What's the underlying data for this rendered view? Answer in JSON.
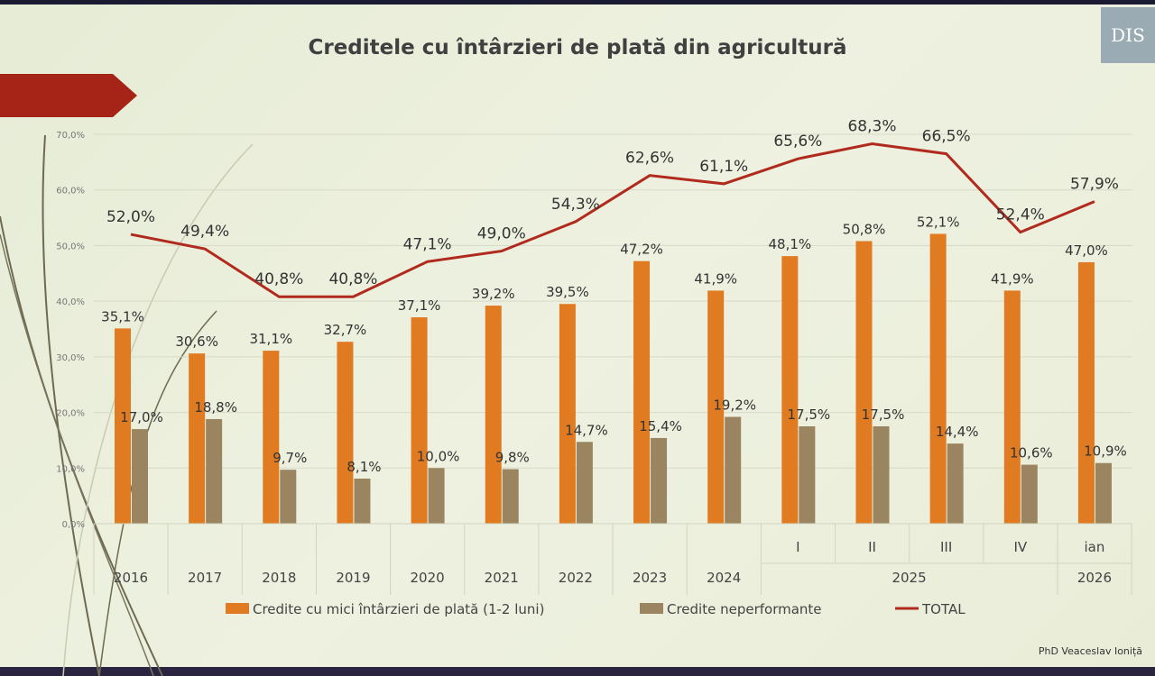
{
  "footer": "PhD Veaceslav Ioniță",
  "logo": "DIS",
  "chart_data": {
    "type": "bar+line",
    "title": "Creditele cu întârzieri de plată din agricultură",
    "categories": [
      "2016",
      "2017",
      "2018",
      "2019",
      "2020",
      "2021",
      "2022",
      "2023",
      "2024",
      "I",
      "II",
      "III",
      "IV",
      "ian"
    ],
    "group_labels": [
      {
        "label": "2025",
        "span": [
          9,
          12
        ]
      },
      {
        "label": "2026",
        "span": [
          13,
          13
        ]
      }
    ],
    "yticks": [
      "0,0%",
      "10,0%",
      "20,0%",
      "30,0%",
      "40,0%",
      "50,0%",
      "60,0%",
      "70,0%"
    ],
    "ylim": [
      0,
      70
    ],
    "series": [
      {
        "name": "Credite cu mici întârzieri de plată (1-2 luni)",
        "type": "bar",
        "color": "#e07b22",
        "values": [
          35.1,
          30.6,
          31.1,
          32.7,
          37.1,
          39.2,
          39.5,
          47.2,
          41.9,
          48.1,
          50.8,
          52.1,
          41.9,
          47.0
        ],
        "labels": [
          "35,1%",
          "30,6%",
          "31,1%",
          "32,7%",
          "37,1%",
          "39,2%",
          "39,5%",
          "47,2%",
          "41,9%",
          "48,1%",
          "50,8%",
          "52,1%",
          "41,9%",
          "47,0%"
        ]
      },
      {
        "name": "Credite neperformante",
        "type": "bar",
        "color": "#9a8560",
        "values": [
          17.0,
          18.8,
          9.7,
          8.1,
          10.0,
          9.8,
          14.7,
          15.4,
          19.2,
          17.5,
          17.5,
          14.4,
          10.6,
          10.9
        ],
        "labels": [
          "17,0%",
          "18,8%",
          "9,7%",
          "8,1%",
          "10,0%",
          "9,8%",
          "14,7%",
          "15,4%",
          "19,2%",
          "17,5%",
          "17,5%",
          "14,4%",
          "10,6%",
          "10,9%"
        ]
      },
      {
        "name": "TOTAL",
        "type": "line",
        "color": "#b02a1e",
        "values": [
          52.0,
          49.4,
          40.8,
          40.8,
          47.1,
          49.0,
          54.3,
          62.6,
          61.1,
          65.6,
          68.3,
          66.5,
          52.4,
          57.9
        ],
        "labels": [
          "52,0%",
          "49,4%",
          "40,8%",
          "40,8%",
          "47,1%",
          "49,0%",
          "54,3%",
          "62,6%",
          "61,1%",
          "65,6%",
          "68,3%",
          "66,5%",
          "52,4%",
          "57,9%"
        ]
      }
    ],
    "legend": "bottom"
  }
}
